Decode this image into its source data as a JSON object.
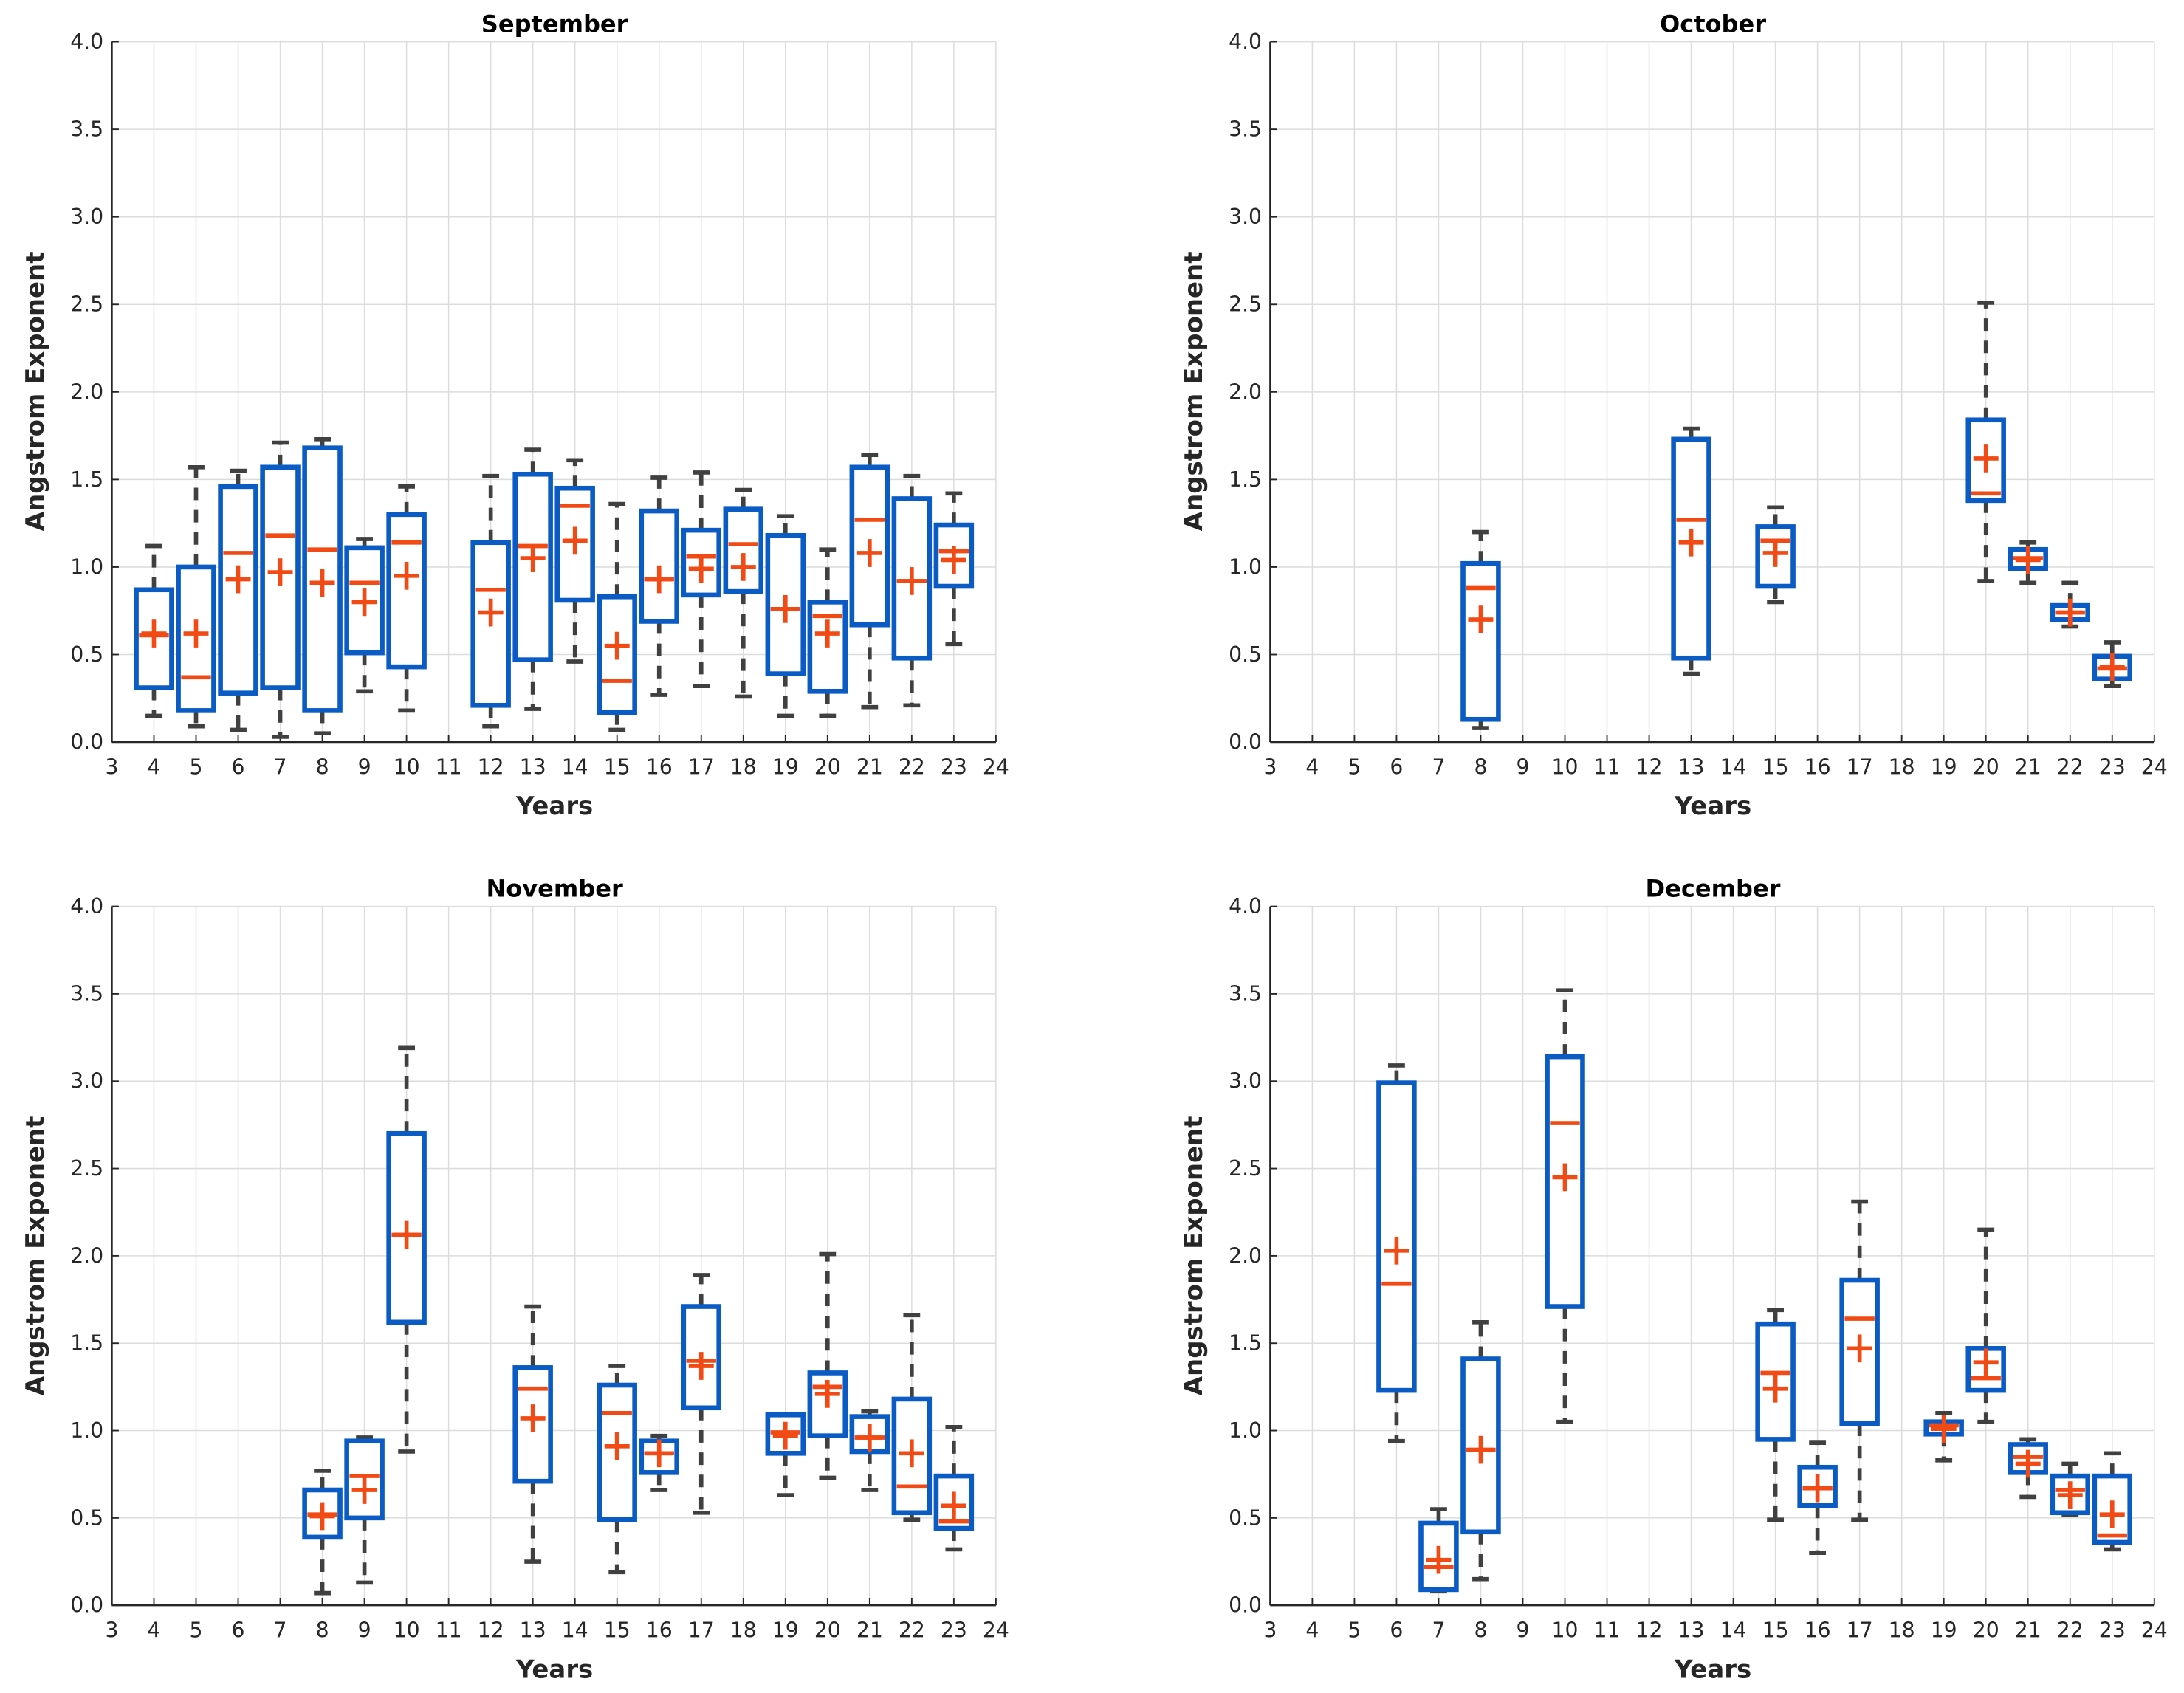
{
  "colors": {
    "box": "#0a5bc4",
    "median": "#f24a14",
    "mean": "#f24a14",
    "whisker": "#404040",
    "grid": "#dcdcdc",
    "axis": "#262626"
  },
  "chart_data": [
    {
      "type": "box",
      "title": "September",
      "xlabel": "Years",
      "ylabel": "Angstrom Exponent",
      "xlim": [
        3,
        24
      ],
      "ylim": [
        0,
        4
      ],
      "xticks": [
        3,
        4,
        5,
        6,
        7,
        8,
        9,
        10,
        11,
        12,
        13,
        14,
        15,
        16,
        17,
        18,
        19,
        20,
        21,
        22,
        23,
        24
      ],
      "yticks": [
        "0.0",
        "0.5",
        "1.0",
        "1.5",
        "2.0",
        "2.5",
        "3.0",
        "3.5",
        "4.0"
      ],
      "grid": true,
      "boxes": [
        {
          "x": 4,
          "whisker_low": 0.15,
          "q1": 0.31,
          "median": 0.61,
          "q3": 0.87,
          "whisker_high": 1.12,
          "mean": 0.62
        },
        {
          "x": 5,
          "whisker_low": 0.09,
          "q1": 0.18,
          "median": 0.37,
          "q3": 1.0,
          "whisker_high": 1.57,
          "mean": 0.62
        },
        {
          "x": 6,
          "whisker_low": 0.07,
          "q1": 0.28,
          "median": 1.08,
          "q3": 1.46,
          "whisker_high": 1.55,
          "mean": 0.93
        },
        {
          "x": 7,
          "whisker_low": 0.03,
          "q1": 0.31,
          "median": 1.18,
          "q3": 1.57,
          "whisker_high": 1.71,
          "mean": 0.97
        },
        {
          "x": 8,
          "whisker_low": 0.05,
          "q1": 0.18,
          "median": 1.1,
          "q3": 1.68,
          "whisker_high": 1.73,
          "mean": 0.91
        },
        {
          "x": 9,
          "whisker_low": 0.29,
          "q1": 0.51,
          "median": 0.91,
          "q3": 1.11,
          "whisker_high": 1.16,
          "mean": 0.8
        },
        {
          "x": 10,
          "whisker_low": 0.18,
          "q1": 0.43,
          "median": 1.14,
          "q3": 1.3,
          "whisker_high": 1.46,
          "mean": 0.95
        },
        {
          "x": 12,
          "whisker_low": 0.09,
          "q1": 0.21,
          "median": 0.87,
          "q3": 1.14,
          "whisker_high": 1.52,
          "mean": 0.74
        },
        {
          "x": 13,
          "whisker_low": 0.19,
          "q1": 0.47,
          "median": 1.12,
          "q3": 1.53,
          "whisker_high": 1.67,
          "mean": 1.05
        },
        {
          "x": 14,
          "whisker_low": 0.46,
          "q1": 0.81,
          "median": 1.35,
          "q3": 1.45,
          "whisker_high": 1.61,
          "mean": 1.15
        },
        {
          "x": 15,
          "whisker_low": 0.07,
          "q1": 0.17,
          "median": 0.35,
          "q3": 0.83,
          "whisker_high": 1.36,
          "mean": 0.55
        },
        {
          "x": 16,
          "whisker_low": 0.27,
          "q1": 0.69,
          "median": 0.93,
          "q3": 1.32,
          "whisker_high": 1.51,
          "mean": 0.93
        },
        {
          "x": 17,
          "whisker_low": 0.32,
          "q1": 0.84,
          "median": 1.06,
          "q3": 1.21,
          "whisker_high": 1.54,
          "mean": 0.99
        },
        {
          "x": 18,
          "whisker_low": 0.26,
          "q1": 0.86,
          "median": 1.13,
          "q3": 1.33,
          "whisker_high": 1.44,
          "mean": 1.0
        },
        {
          "x": 19,
          "whisker_low": 0.15,
          "q1": 0.39,
          "median": 0.76,
          "q3": 1.18,
          "whisker_high": 1.29,
          "mean": 0.76
        },
        {
          "x": 20,
          "whisker_low": 0.15,
          "q1": 0.29,
          "median": 0.72,
          "q3": 0.8,
          "whisker_high": 1.1,
          "mean": 0.62
        },
        {
          "x": 21,
          "whisker_low": 0.2,
          "q1": 0.67,
          "median": 1.27,
          "q3": 1.57,
          "whisker_high": 1.64,
          "mean": 1.08
        },
        {
          "x": 22,
          "whisker_low": 0.21,
          "q1": 0.48,
          "median": 0.92,
          "q3": 1.39,
          "whisker_high": 1.52,
          "mean": 0.92
        },
        {
          "x": 23,
          "whisker_low": 0.56,
          "q1": 0.89,
          "median": 1.09,
          "q3": 1.24,
          "whisker_high": 1.42,
          "mean": 1.04
        }
      ]
    },
    {
      "type": "box",
      "title": "October",
      "xlabel": "Years",
      "ylabel": "Angstrom Exponent",
      "xlim": [
        3,
        24
      ],
      "ylim": [
        0,
        4
      ],
      "xticks": [
        3,
        4,
        5,
        6,
        7,
        8,
        9,
        10,
        11,
        12,
        13,
        14,
        15,
        16,
        17,
        18,
        19,
        20,
        21,
        22,
        23,
        24
      ],
      "yticks": [
        "0.0",
        "0.5",
        "1.0",
        "1.5",
        "2.0",
        "2.5",
        "3.0",
        "3.5",
        "4.0"
      ],
      "grid": true,
      "boxes": [
        {
          "x": 8,
          "whisker_low": 0.08,
          "q1": 0.13,
          "median": 0.88,
          "q3": 1.02,
          "whisker_high": 1.2,
          "mean": 0.7
        },
        {
          "x": 13,
          "whisker_low": 0.39,
          "q1": 0.48,
          "median": 1.27,
          "q3": 1.73,
          "whisker_high": 1.79,
          "mean": 1.14
        },
        {
          "x": 15,
          "whisker_low": 0.8,
          "q1": 0.89,
          "median": 1.15,
          "q3": 1.23,
          "whisker_high": 1.34,
          "mean": 1.08
        },
        {
          "x": 20,
          "whisker_low": 0.92,
          "q1": 1.38,
          "median": 1.42,
          "q3": 1.84,
          "whisker_high": 2.51,
          "mean": 1.62
        },
        {
          "x": 21,
          "whisker_low": 0.91,
          "q1": 0.99,
          "median": 1.05,
          "q3": 1.1,
          "whisker_high": 1.14,
          "mean": 1.04
        },
        {
          "x": 22,
          "whisker_low": 0.66,
          "q1": 0.7,
          "median": 0.74,
          "q3": 0.78,
          "whisker_high": 0.91,
          "mean": 0.74
        },
        {
          "x": 23,
          "whisker_low": 0.32,
          "q1": 0.36,
          "median": 0.42,
          "q3": 0.49,
          "whisker_high": 0.57,
          "mean": 0.43
        }
      ]
    },
    {
      "type": "box",
      "title": "November",
      "xlabel": "Years",
      "ylabel": "Angstrom Exponent",
      "xlim": [
        3,
        24
      ],
      "ylim": [
        0,
        4
      ],
      "xticks": [
        3,
        4,
        5,
        6,
        7,
        8,
        9,
        10,
        11,
        12,
        13,
        14,
        15,
        16,
        17,
        18,
        19,
        20,
        21,
        22,
        23,
        24
      ],
      "yticks": [
        "0.0",
        "0.5",
        "1.0",
        "1.5",
        "2.0",
        "2.5",
        "3.0",
        "3.5",
        "4.0"
      ],
      "grid": true,
      "boxes": [
        {
          "x": 8,
          "whisker_low": 0.07,
          "q1": 0.39,
          "median": 0.52,
          "q3": 0.66,
          "whisker_high": 0.77,
          "mean": 0.51
        },
        {
          "x": 9,
          "whisker_low": 0.13,
          "q1": 0.5,
          "median": 0.74,
          "q3": 0.94,
          "whisker_high": 0.96,
          "mean": 0.66
        },
        {
          "x": 10,
          "whisker_low": 0.88,
          "q1": 1.62,
          "median": 2.12,
          "q3": 2.7,
          "whisker_high": 3.19,
          "mean": 2.12
        },
        {
          "x": 13,
          "whisker_low": 0.25,
          "q1": 0.71,
          "median": 1.24,
          "q3": 1.36,
          "whisker_high": 1.71,
          "mean": 1.07
        },
        {
          "x": 15,
          "whisker_low": 0.19,
          "q1": 0.49,
          "median": 1.1,
          "q3": 1.26,
          "whisker_high": 1.37,
          "mean": 0.91
        },
        {
          "x": 16,
          "whisker_low": 0.66,
          "q1": 0.76,
          "median": 0.87,
          "q3": 0.94,
          "whisker_high": 0.97,
          "mean": 0.87
        },
        {
          "x": 17,
          "whisker_low": 0.53,
          "q1": 1.13,
          "median": 1.4,
          "q3": 1.71,
          "whisker_high": 1.89,
          "mean": 1.37
        },
        {
          "x": 19,
          "whisker_low": 0.63,
          "q1": 0.87,
          "median": 0.99,
          "q3": 1.09,
          "whisker_high": 1.09,
          "mean": 0.97
        },
        {
          "x": 20,
          "whisker_low": 0.73,
          "q1": 0.97,
          "median": 1.25,
          "q3": 1.33,
          "whisker_high": 2.01,
          "mean": 1.21
        },
        {
          "x": 21,
          "whisker_low": 0.66,
          "q1": 0.88,
          "median": 0.96,
          "q3": 1.08,
          "whisker_high": 1.11,
          "mean": 0.96
        },
        {
          "x": 22,
          "whisker_low": 0.49,
          "q1": 0.53,
          "median": 0.68,
          "q3": 1.18,
          "whisker_high": 1.66,
          "mean": 0.87
        },
        {
          "x": 23,
          "whisker_low": 0.32,
          "q1": 0.44,
          "median": 0.48,
          "q3": 0.74,
          "whisker_high": 1.02,
          "mean": 0.57
        }
      ]
    },
    {
      "type": "box",
      "title": "December",
      "xlabel": "Years",
      "ylabel": "Angstrom Exponent",
      "xlim": [
        3,
        24
      ],
      "ylim": [
        0,
        4
      ],
      "xticks": [
        3,
        4,
        5,
        6,
        7,
        8,
        9,
        10,
        11,
        12,
        13,
        14,
        15,
        16,
        17,
        18,
        19,
        20,
        21,
        22,
        23,
        24
      ],
      "yticks": [
        "0.0",
        "0.5",
        "1.0",
        "1.5",
        "2.0",
        "2.5",
        "3.0",
        "3.5",
        "4.0"
      ],
      "grid": true,
      "boxes": [
        {
          "x": 6,
          "whisker_low": 0.94,
          "q1": 1.23,
          "median": 1.84,
          "q3": 2.99,
          "whisker_high": 3.09,
          "mean": 2.03
        },
        {
          "x": 7,
          "whisker_low": 0.08,
          "q1": 0.09,
          "median": 0.22,
          "q3": 0.47,
          "whisker_high": 0.55,
          "mean": 0.26
        },
        {
          "x": 8,
          "whisker_low": 0.15,
          "q1": 0.42,
          "median": 0.89,
          "q3": 1.41,
          "whisker_high": 1.62,
          "mean": 0.89
        },
        {
          "x": 10,
          "whisker_low": 1.05,
          "q1": 1.71,
          "median": 2.76,
          "q3": 3.14,
          "whisker_high": 3.52,
          "mean": 2.45
        },
        {
          "x": 15,
          "whisker_low": 0.49,
          "q1": 0.95,
          "median": 1.33,
          "q3": 1.61,
          "whisker_high": 1.69,
          "mean": 1.24
        },
        {
          "x": 16,
          "whisker_low": 0.3,
          "q1": 0.57,
          "median": 0.67,
          "q3": 0.79,
          "whisker_high": 0.93,
          "mean": 0.67
        },
        {
          "x": 17,
          "whisker_low": 0.49,
          "q1": 1.04,
          "median": 1.64,
          "q3": 1.86,
          "whisker_high": 2.31,
          "mean": 1.47
        },
        {
          "x": 19,
          "whisker_low": 0.83,
          "q1": 0.98,
          "median": 1.03,
          "q3": 1.05,
          "whisker_high": 1.1,
          "mean": 1.01
        },
        {
          "x": 20,
          "whisker_low": 1.05,
          "q1": 1.23,
          "median": 1.3,
          "q3": 1.47,
          "whisker_high": 2.15,
          "mean": 1.39
        },
        {
          "x": 21,
          "whisker_low": 0.62,
          "q1": 0.76,
          "median": 0.85,
          "q3": 0.92,
          "whisker_high": 0.95,
          "mean": 0.81
        },
        {
          "x": 22,
          "whisker_low": 0.52,
          "q1": 0.53,
          "median": 0.66,
          "q3": 0.74,
          "whisker_high": 0.81,
          "mean": 0.63
        },
        {
          "x": 23,
          "whisker_low": 0.32,
          "q1": 0.36,
          "median": 0.4,
          "q3": 0.74,
          "whisker_high": 0.87,
          "mean": 0.52
        }
      ]
    }
  ]
}
